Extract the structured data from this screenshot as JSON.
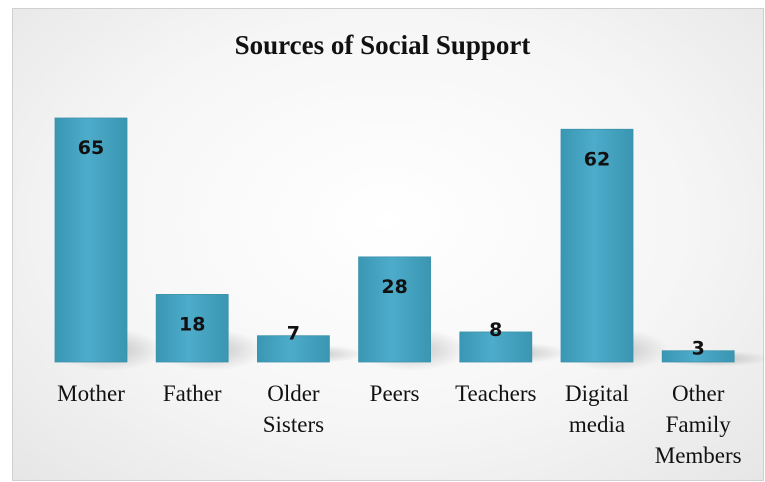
{
  "chart_data": {
    "type": "bar",
    "title": "Sources of Social Support",
    "xlabel": "",
    "ylabel": "",
    "categories": [
      [
        "Mother"
      ],
      [
        "Father"
      ],
      [
        "Older",
        "Sisters"
      ],
      [
        "Peers"
      ],
      [
        "Teachers"
      ],
      [
        "Digital",
        "media"
      ],
      [
        "Other",
        "Family",
        "Members"
      ]
    ],
    "values": [
      65,
      18,
      7,
      28,
      8,
      62,
      3
    ],
    "ylim": [
      0,
      65
    ],
    "grid": false,
    "legend": "none",
    "data_labels": true,
    "colors": {
      "bar": "#44a6c2",
      "bar_edge": "#3b92ab",
      "label": "#111111"
    }
  }
}
